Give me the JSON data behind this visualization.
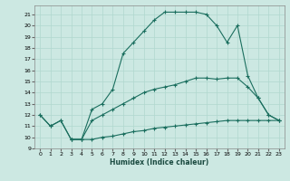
{
  "xlabel": "Humidex (Indice chaleur)",
  "bg_color": "#cce8e2",
  "line_color": "#1a6e5e",
  "grid_color": "#b0d8ce",
  "xlim": [
    -0.5,
    23.5
  ],
  "ylim": [
    9,
    21.8
  ],
  "yticks": [
    9,
    10,
    11,
    12,
    13,
    14,
    15,
    16,
    17,
    18,
    19,
    20,
    21
  ],
  "xticks": [
    0,
    1,
    2,
    3,
    4,
    5,
    6,
    7,
    8,
    9,
    10,
    11,
    12,
    13,
    14,
    15,
    16,
    17,
    18,
    19,
    20,
    21,
    22,
    23
  ],
  "line1_x": [
    0,
    1,
    2,
    3,
    4,
    5,
    6,
    7,
    8,
    9,
    10,
    11,
    12,
    13,
    14,
    15,
    16,
    17,
    18,
    19,
    20,
    21,
    22,
    23
  ],
  "line1_y": [
    12,
    11,
    11.5,
    9.8,
    9.8,
    12.5,
    13.0,
    14.3,
    17.5,
    18.5,
    19.5,
    20.5,
    21.2,
    21.2,
    21.2,
    21.2,
    21.0,
    20.0,
    18.5,
    20.0,
    15.5,
    13.5,
    12.0,
    11.5
  ],
  "line2_x": [
    0,
    1,
    2,
    3,
    4,
    5,
    6,
    7,
    8,
    9,
    10,
    11,
    12,
    13,
    14,
    15,
    16,
    17,
    18,
    19,
    20,
    21,
    22,
    23
  ],
  "line2_y": [
    12,
    11,
    11.5,
    9.8,
    9.8,
    11.5,
    12.0,
    12.5,
    13.0,
    13.5,
    14.0,
    14.3,
    14.5,
    14.7,
    15.0,
    15.3,
    15.3,
    15.2,
    15.3,
    15.3,
    14.5,
    13.5,
    12.0,
    11.5
  ],
  "line3_x": [
    3,
    4,
    5,
    6,
    7,
    8,
    9,
    10,
    11,
    12,
    13,
    14,
    15,
    16,
    17,
    18,
    19,
    20,
    21,
    22,
    23
  ],
  "line3_y": [
    9.8,
    9.8,
    9.8,
    10.0,
    10.1,
    10.3,
    10.5,
    10.6,
    10.8,
    10.9,
    11.0,
    11.1,
    11.2,
    11.3,
    11.4,
    11.5,
    11.5,
    11.5,
    11.5,
    11.5,
    11.5
  ]
}
